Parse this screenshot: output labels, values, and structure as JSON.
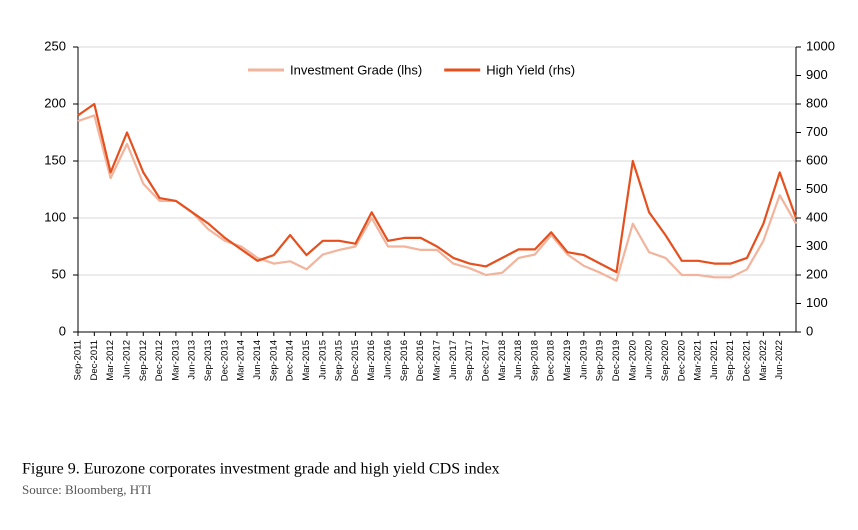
{
  "chart_data": {
    "type": "line",
    "x": [
      "Sep-2011",
      "Dec-2011",
      "Mar-2012",
      "Jun-2012",
      "Sep-2012",
      "Dec-2012",
      "Mar-2013",
      "Jun-2013",
      "Sep-2013",
      "Dec-2013",
      "Mar-2014",
      "Jun-2014",
      "Sep-2014",
      "Dec-2014",
      "Mar-2015",
      "Jun-2015",
      "Sep-2015",
      "Dec-2015",
      "Mar-2016",
      "Jun-2016",
      "Sep-2016",
      "Dec-2016",
      "Mar-2017",
      "Jun-2017",
      "Sep-2017",
      "Dec-2017",
      "Mar-2018",
      "Jun-2018",
      "Sep-2018",
      "Dec-2018",
      "Mar-2019",
      "Jun-2019",
      "Sep-2019",
      "Dec-2019",
      "Mar-2020",
      "Jun-2020",
      "Sep-2020",
      "Dec-2020",
      "Mar-2021",
      "Jun-2021",
      "Sep-2021",
      "Dec-2021",
      "Mar-2022",
      "Jun-2022",
      null
    ],
    "series": [
      {
        "name": "Investment Grade (lhs)",
        "color": "#f2b49c",
        "axis": "y",
        "values": [
          185,
          190,
          135,
          165,
          130,
          115,
          115,
          105,
          90,
          80,
          75,
          65,
          60,
          62,
          55,
          68,
          72,
          75,
          100,
          75,
          75,
          72,
          72,
          60,
          56,
          50,
          52,
          65,
          68,
          85,
          68,
          58,
          52,
          45,
          95,
          70,
          65,
          50,
          50,
          48,
          48,
          55,
          80,
          120,
          95
        ]
      },
      {
        "name": "High Yield (rhs)",
        "color": "#e5501e",
        "axis": "y2",
        "values": [
          760,
          800,
          560,
          700,
          560,
          470,
          460,
          420,
          380,
          330,
          290,
          250,
          270,
          340,
          270,
          320,
          320,
          310,
          420,
          320,
          330,
          330,
          300,
          260,
          240,
          230,
          260,
          290,
          290,
          350,
          280,
          270,
          240,
          210,
          600,
          420,
          340,
          250,
          250,
          240,
          240,
          260,
          380,
          560,
          400
        ]
      }
    ],
    "ylim": [
      0,
      250
    ],
    "yticks": [
      0,
      50,
      100,
      150,
      200,
      250
    ],
    "y2lim": [
      0,
      1000
    ],
    "y2ticks": [
      0,
      100,
      200,
      300,
      400,
      500,
      600,
      700,
      800,
      900,
      1000
    ],
    "grid": true,
    "legend": "top"
  },
  "caption": "Figure 9. Eurozone corporates investment grade and high yield CDS index",
  "source": "Source: Bloomberg, HTI"
}
